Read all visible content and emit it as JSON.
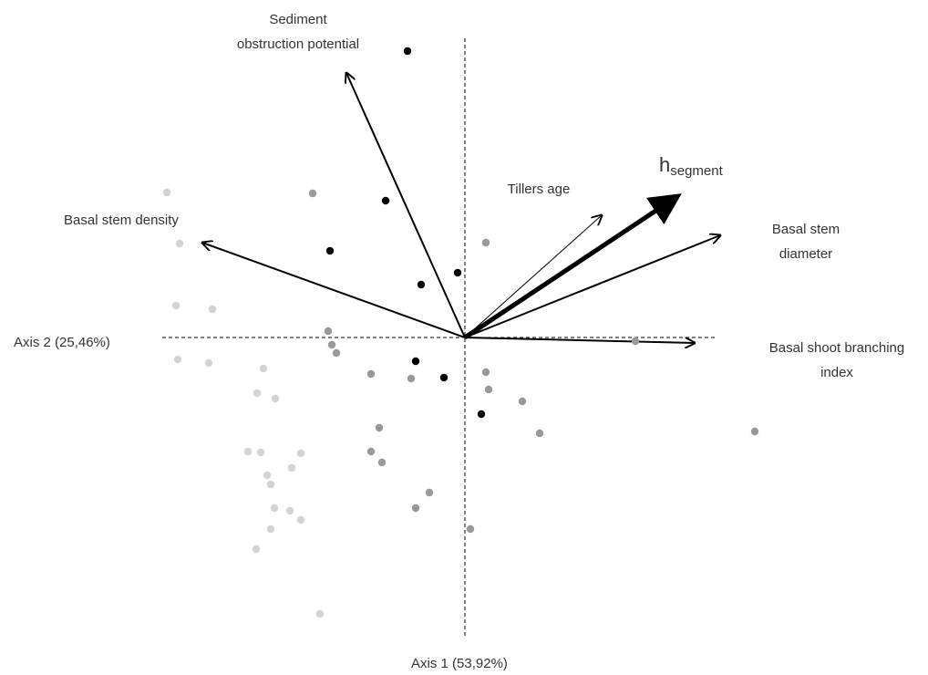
{
  "chart_data": {
    "type": "biplot",
    "x_label": "Axis 1 (53,92%)",
    "y_label": "Axis 2 (25,46%)",
    "xlim": [
      -3.4,
      3.4
    ],
    "ylim": [
      -3.4,
      3.4
    ],
    "series": [
      {
        "color": "#000000",
        "x": [
          -0.63,
          -0.87,
          -1.48,
          -0.48,
          -0.08,
          -0.54,
          -0.23,
          0.18
        ],
        "y": [
          3.14,
          1.5,
          0.95,
          0.58,
          0.71,
          -0.26,
          -0.44,
          -0.84
        ]
      },
      {
        "color": "#999999",
        "x": [
          -1.67,
          0.23,
          -1.5,
          -1.46,
          -1.41,
          -1.03,
          -0.59,
          0.23,
          0.26,
          0.63,
          0.82,
          -0.94,
          -1.03,
          -0.91,
          -0.39,
          -0.54,
          0.06,
          1.87,
          3.18
        ],
        "y": [
          1.58,
          1.04,
          0.07,
          -0.08,
          -0.17,
          -0.4,
          -0.45,
          -0.38,
          -0.57,
          -0.7,
          -1.05,
          -0.99,
          -1.25,
          -1.37,
          -1.7,
          -1.87,
          -2.1,
          -0.04,
          -1.03
        ]
      },
      {
        "color": "#d3d3d3",
        "x": [
          -3.27,
          -3.13,
          -3.17,
          -2.77,
          -3.15,
          -2.81,
          -2.21,
          -2.28,
          -2.08,
          -2.38,
          -2.24,
          -1.8,
          -1.9,
          -2.17,
          -2.13,
          -2.09,
          -1.92,
          -1.8,
          -2.13,
          -2.29,
          -1.59
        ],
        "y": [
          1.59,
          1.03,
          0.35,
          0.31,
          -0.24,
          -0.28,
          -0.34,
          -0.61,
          -0.67,
          -1.25,
          -1.26,
          -1.27,
          -1.43,
          -1.51,
          -1.61,
          -1.87,
          -1.9,
          -2.0,
          -2.1,
          -2.32,
          -3.03
        ]
      }
    ],
    "vectors": [
      {
        "label": [
          "Sediment",
          "obstruction potential"
        ],
        "x": -1.3,
        "y": 2.9,
        "width": 2
      },
      {
        "label": [
          "Basal stem density"
        ],
        "x": -2.88,
        "y": 1.04,
        "width": 2
      },
      {
        "label": [
          "Tillers age"
        ],
        "x": 1.5,
        "y": 1.34,
        "width": 1
      },
      {
        "label": [
          "h"
        ],
        "label_sub": "segment",
        "x": 2.32,
        "y": 1.54,
        "width": 5
      },
      {
        "label": [
          "Basal stem",
          "diameter"
        ],
        "x": 2.8,
        "y": 1.12,
        "width": 2
      },
      {
        "label": [
          "Basal shoot branching",
          "index"
        ],
        "x": 2.52,
        "y": -0.06,
        "width": 2
      }
    ]
  }
}
